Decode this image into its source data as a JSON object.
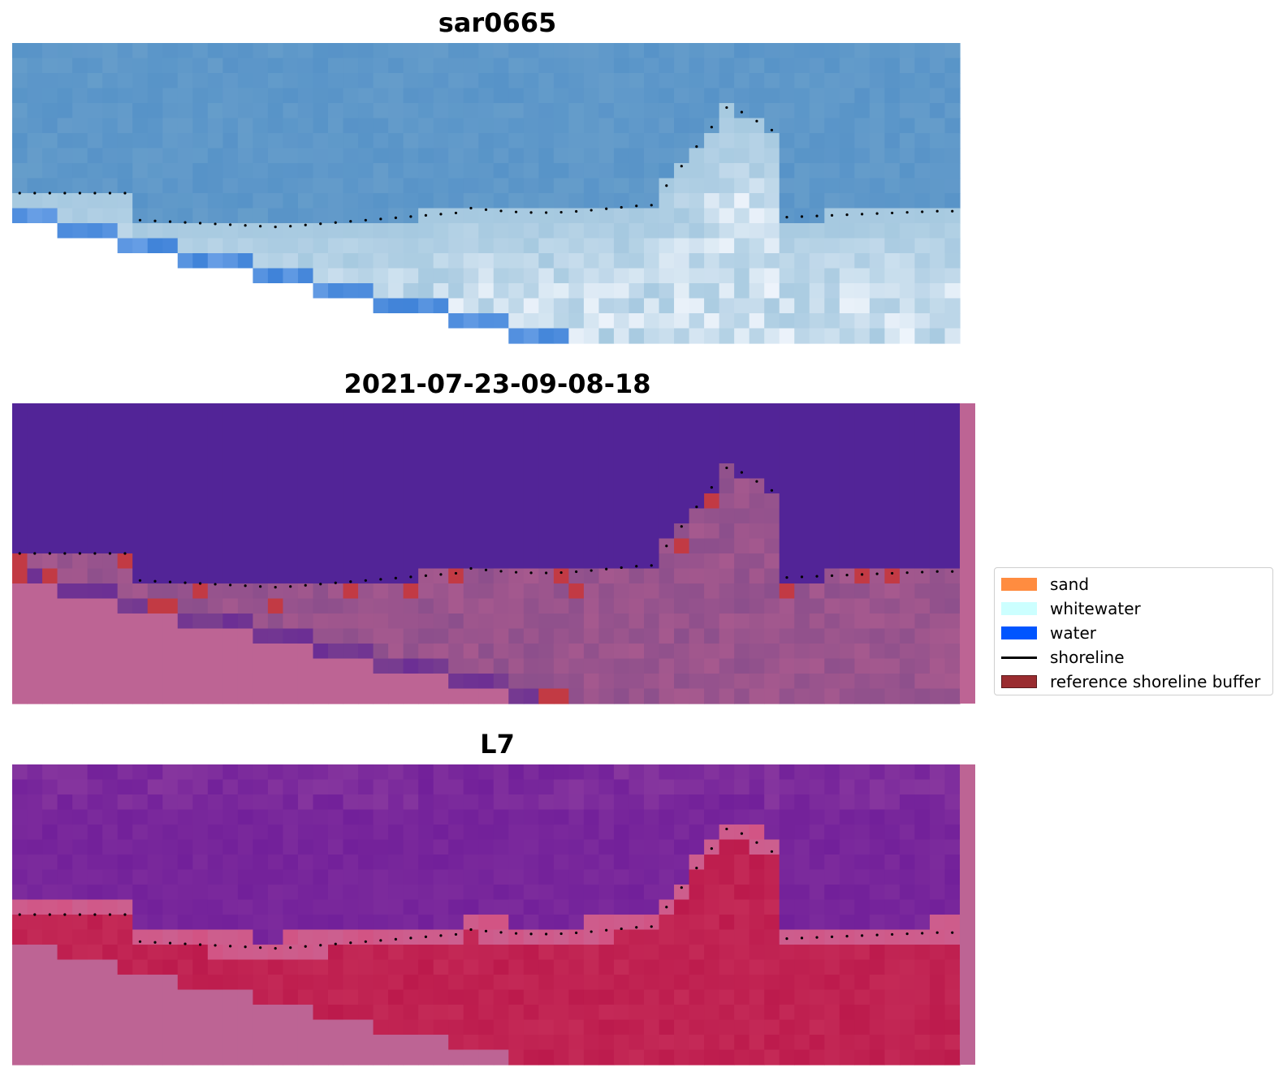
{
  "panels": [
    {
      "title": "sar0665"
    },
    {
      "title": "2021-07-23-09-08-18"
    },
    {
      "title": "L7"
    }
  ],
  "legend": {
    "items": [
      {
        "label": "sand",
        "color": "#ff8c40",
        "kind": "patch"
      },
      {
        "label": "whitewater",
        "color": "#ccffff",
        "kind": "patch"
      },
      {
        "label": "water",
        "color": "#0055ff",
        "kind": "patch"
      },
      {
        "label": "shoreline",
        "color": "#000000",
        "kind": "line"
      },
      {
        "label": "reference shoreline buffer",
        "color": "#9a2c30",
        "kind": "patch"
      }
    ]
  },
  "colors": {
    "rgb_sea": "#5793c8",
    "rgb_beach": "#a6c9e0",
    "rgb_bright": "#eef4fb",
    "class_water": "#522497",
    "class_land": "#bd6494",
    "class_mid": "#8c4f8c",
    "class_buffer": "#c23a44",
    "ndwi_sea": "#72209a",
    "ndwi_land": "#bc1a4c",
    "ndwi_edge": "#d25484",
    "nodata": "#bd6494"
  }
}
